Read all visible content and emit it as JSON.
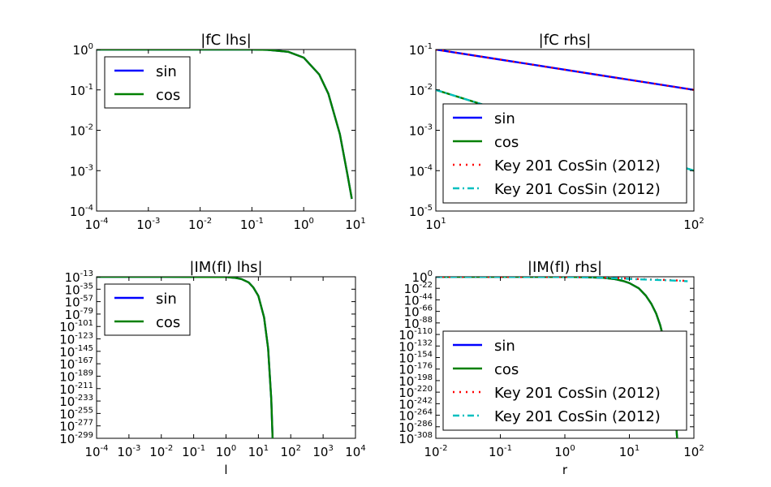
{
  "chart_data": [
    {
      "type": "line",
      "title": "|fC lhs|",
      "xlabel": "",
      "xscale": "log",
      "yscale": "log",
      "xlim": [
        0.0001,
        10
      ],
      "ylim": [
        0.0001,
        1
      ],
      "xticks": [
        {
          "m": "10",
          "e": "-4"
        },
        {
          "m": "10",
          "e": "-3"
        },
        {
          "m": "10",
          "e": "-2"
        },
        {
          "m": "10",
          "e": "-1"
        },
        {
          "m": "10",
          "e": "0"
        },
        {
          "m": "10",
          "e": "1"
        }
      ],
      "yticks": [
        {
          "m": "10",
          "e": "-4"
        },
        {
          "m": "10",
          "e": "-3"
        },
        {
          "m": "10",
          "e": "-2"
        },
        {
          "m": "10",
          "e": "-1"
        },
        {
          "m": "10",
          "e": "0"
        }
      ],
      "legend_position": "upper-left",
      "series": [
        {
          "name": "sin",
          "color": "#0000ff",
          "style": "solid",
          "x": [
            0.0001,
            0.001,
            0.01,
            0.05,
            0.1,
            0.2,
            0.5,
            1,
            2,
            3,
            5,
            7,
            8.5
          ],
          "y": [
            1,
            1,
            1,
            0.998,
            0.995,
            0.98,
            0.88,
            0.63,
            0.24,
            0.08,
            0.008,
            0.0008,
            0.0002
          ]
        },
        {
          "name": "cos",
          "color": "#008000",
          "style": "solid",
          "x": [
            0.0001,
            0.001,
            0.01,
            0.05,
            0.1,
            0.2,
            0.5,
            1,
            2,
            3,
            5,
            7,
            8.5
          ],
          "y": [
            1,
            1,
            1,
            0.998,
            0.995,
            0.98,
            0.88,
            0.63,
            0.24,
            0.08,
            0.008,
            0.0008,
            0.0002
          ]
        }
      ]
    },
    {
      "type": "line",
      "title": "|fC rhs|",
      "xlabel": "",
      "xscale": "log",
      "yscale": "log",
      "xlim": [
        10,
        100
      ],
      "ylim": [
        1e-05,
        0.1
      ],
      "xticks": [
        {
          "m": "10",
          "e": "1"
        },
        {
          "m": "10",
          "e": "2"
        }
      ],
      "yticks": [
        {
          "m": "10",
          "e": "-5"
        },
        {
          "m": "10",
          "e": "-4"
        },
        {
          "m": "10",
          "e": "-3"
        },
        {
          "m": "10",
          "e": "-2"
        },
        {
          "m": "10",
          "e": "-1"
        }
      ],
      "legend_position": "lower-right",
      "series": [
        {
          "name": "sin",
          "color": "#0000ff",
          "style": "solid",
          "x": [
            10,
            100
          ],
          "y": [
            0.1,
            0.01
          ]
        },
        {
          "name": "cos",
          "color": "#008000",
          "style": "solid",
          "x": [
            10,
            100
          ],
          "y": [
            0.01,
            0.0001
          ]
        },
        {
          "name": "Key 201 CosSin (2012)",
          "color": "#ff0000",
          "style": "dotted",
          "x": [
            10,
            100
          ],
          "y": [
            0.1,
            0.01
          ]
        },
        {
          "name": "Key 201 CosSin (2012)",
          "color": "#00bfbf",
          "style": "dashdot",
          "x": [
            10,
            100
          ],
          "y": [
            0.01,
            0.0001
          ]
        }
      ]
    },
    {
      "type": "line",
      "title": "|IM(fI) lhs|",
      "xlabel": "l",
      "xscale": "log",
      "yscale": "log",
      "xlim": [
        0.0001,
        10000
      ],
      "ylim": [
        1e-299,
        1e-13
      ],
      "xticks": [
        {
          "m": "10",
          "e": "-4"
        },
        {
          "m": "10",
          "e": "-3"
        },
        {
          "m": "10",
          "e": "-2"
        },
        {
          "m": "10",
          "e": "-1"
        },
        {
          "m": "10",
          "e": "0"
        },
        {
          "m": "10",
          "e": "1"
        },
        {
          "m": "10",
          "e": "2"
        },
        {
          "m": "10",
          "e": "3"
        },
        {
          "m": "10",
          "e": "4"
        }
      ],
      "yticks": [
        {
          "m": "10",
          "e": "-299"
        },
        {
          "m": "10",
          "e": "-277"
        },
        {
          "m": "10",
          "e": "-255"
        },
        {
          "m": "10",
          "e": "-233"
        },
        {
          "m": "10",
          "e": "-211"
        },
        {
          "m": "10",
          "e": "-189"
        },
        {
          "m": "10",
          "e": "-167"
        },
        {
          "m": "10",
          "e": "-145"
        },
        {
          "m": "10",
          "e": "-123"
        },
        {
          "m": "10",
          "e": "-101"
        },
        {
          "m": "10",
          "e": "-79"
        },
        {
          "m": "10",
          "e": "-57"
        },
        {
          "m": "10",
          "e": "-35"
        },
        {
          "m": "10",
          "e": "-13"
        }
      ],
      "legend_position": "upper-left",
      "series": [
        {
          "name": "sin",
          "color": "#0000ff",
          "style": "solid",
          "x": [
            0.0001,
            0.01,
            1,
            2,
            3,
            5,
            7,
            10,
            15,
            20,
            25,
            27.5
          ],
          "yexp": [
            -13,
            -13,
            -13.5,
            -15,
            -17,
            -23,
            -32,
            -47,
            -85,
            -140,
            -230,
            -299
          ]
        },
        {
          "name": "cos",
          "color": "#008000",
          "style": "solid",
          "x": [
            0.0001,
            0.01,
            1,
            2,
            3,
            5,
            7,
            10,
            15,
            20,
            25,
            27.5
          ],
          "yexp": [
            -13,
            -13,
            -13.5,
            -15,
            -17,
            -23,
            -32,
            -47,
            -85,
            -140,
            -230,
            -299
          ]
        }
      ]
    },
    {
      "type": "line",
      "title": "|IM(fI) rhs|",
      "xlabel": "r",
      "xscale": "log",
      "yscale": "log",
      "xlim": [
        0.01,
        100
      ],
      "ylim": [
        1e-308,
        1
      ],
      "xticks": [
        {
          "m": "10",
          "e": "-2"
        },
        {
          "m": "10",
          "e": "-1"
        },
        {
          "m": "10",
          "e": "0"
        },
        {
          "m": "10",
          "e": "1"
        },
        {
          "m": "10",
          "e": "2"
        }
      ],
      "yticks": [
        {
          "m": "10",
          "e": "-308"
        },
        {
          "m": "10",
          "e": "-286"
        },
        {
          "m": "10",
          "e": "-264"
        },
        {
          "m": "10",
          "e": "-242"
        },
        {
          "m": "10",
          "e": "-220"
        },
        {
          "m": "10",
          "e": "-198"
        },
        {
          "m": "10",
          "e": "-176"
        },
        {
          "m": "10",
          "e": "-154"
        },
        {
          "m": "10",
          "e": "-132"
        },
        {
          "m": "10",
          "e": "-110"
        },
        {
          "m": "10",
          "e": "-88"
        },
        {
          "m": "10",
          "e": "-66"
        },
        {
          "m": "10",
          "e": "-44"
        },
        {
          "m": "10",
          "e": "-22"
        },
        {
          "m": "10",
          "e": "0"
        }
      ],
      "legend_position": "lower-right",
      "series": [
        {
          "name": "sin",
          "color": "#0000ff",
          "style": "solid",
          "x": [
            0.01,
            0.1,
            1,
            2,
            4,
            6,
            8,
            10,
            14,
            18,
            22,
            26,
            30,
            33,
            40,
            46,
            52,
            55
          ],
          "yexp": [
            0,
            0,
            -0.2,
            -0.6,
            -2,
            -4.5,
            -8,
            -12,
            -22,
            -36,
            -52,
            -70,
            -92,
            -112,
            -165,
            -215,
            -270,
            -308
          ]
        },
        {
          "name": "cos",
          "color": "#008000",
          "style": "solid",
          "x": [
            0.01,
            0.1,
            1,
            2,
            4,
            6,
            8,
            10,
            14,
            18,
            22,
            26,
            30,
            33,
            40,
            46,
            52,
            55
          ],
          "yexp": [
            0,
            0,
            -0.2,
            -0.6,
            -2,
            -4.5,
            -8,
            -12,
            -22,
            -36,
            -52,
            -70,
            -92,
            -112,
            -165,
            -215,
            -270,
            -308
          ]
        },
        {
          "name": "Key 201 CosSin (2012)",
          "color": "#ff0000",
          "style": "dotted",
          "x": [
            0.01,
            1,
            3,
            5,
            8,
            12,
            20,
            35,
            55,
            80
          ],
          "yexp": [
            0,
            -0.3,
            -1,
            -2,
            -3,
            -4,
            -5,
            -6,
            -7,
            -8
          ]
        },
        {
          "name": "Key 201 CosSin (2012)",
          "color": "#00bfbf",
          "style": "dashdot",
          "x": [
            0.01,
            1,
            3,
            5,
            8,
            12,
            20,
            35,
            55,
            80
          ],
          "yexp": [
            0,
            -0.3,
            -1.2,
            -2.3,
            -3.4,
            -4.5,
            -5.5,
            -6.5,
            -7.5,
            -8.5
          ]
        }
      ]
    }
  ]
}
